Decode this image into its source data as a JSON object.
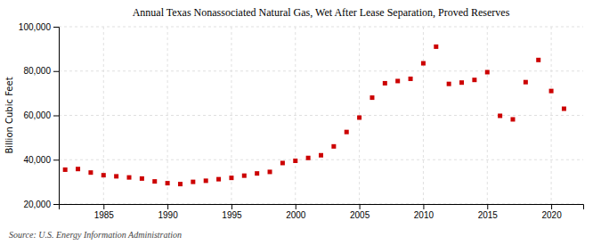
{
  "chart_data": {
    "type": "scatter",
    "title": "Annual Texas Nonassociated Natural Gas, Wet After Lease Separation, Proved Reserves",
    "ylabel": "Billion Cubic Feet",
    "annotations": [
      "Source: U.S. Energy Information Administration"
    ],
    "x": [
      1982,
      1983,
      1984,
      1985,
      1986,
      1987,
      1988,
      1989,
      1990,
      1991,
      1992,
      1993,
      1994,
      1995,
      1996,
      1997,
      1998,
      1999,
      2000,
      2001,
      2002,
      2003,
      2004,
      2005,
      2006,
      2007,
      2008,
      2009,
      2010,
      2011,
      2012,
      2013,
      2014,
      2015,
      2016,
      2017,
      2018,
      2019,
      2020,
      2021
    ],
    "values": [
      35500,
      35800,
      34200,
      33000,
      32500,
      32000,
      31500,
      30200,
      29400,
      29000,
      30000,
      30500,
      31200,
      31800,
      32800,
      33800,
      34500,
      38500,
      39500,
      40800,
      42000,
      46000,
      52500,
      59000,
      68000,
      74500,
      75500,
      76500,
      83500,
      91000,
      74200,
      74800,
      76000,
      79500,
      59800,
      58200,
      75000,
      85000,
      71000,
      63000
    ],
    "color": "#cc0000",
    "marker": "square",
    "xlim": [
      1981.5,
      2022.5
    ],
    "ylim": [
      20000,
      100000
    ],
    "xticks": [
      1985,
      1990,
      1995,
      2000,
      2005,
      2010,
      2015,
      2020
    ],
    "yticks": [
      {
        "value": 20000,
        "label": "20,000"
      },
      {
        "value": 40000,
        "label": "40,000"
      },
      {
        "value": 60000,
        "label": "60,000"
      },
      {
        "value": 80000,
        "label": "80,000"
      },
      {
        "value": 100000,
        "label": "100,000"
      }
    ],
    "grid": true
  }
}
